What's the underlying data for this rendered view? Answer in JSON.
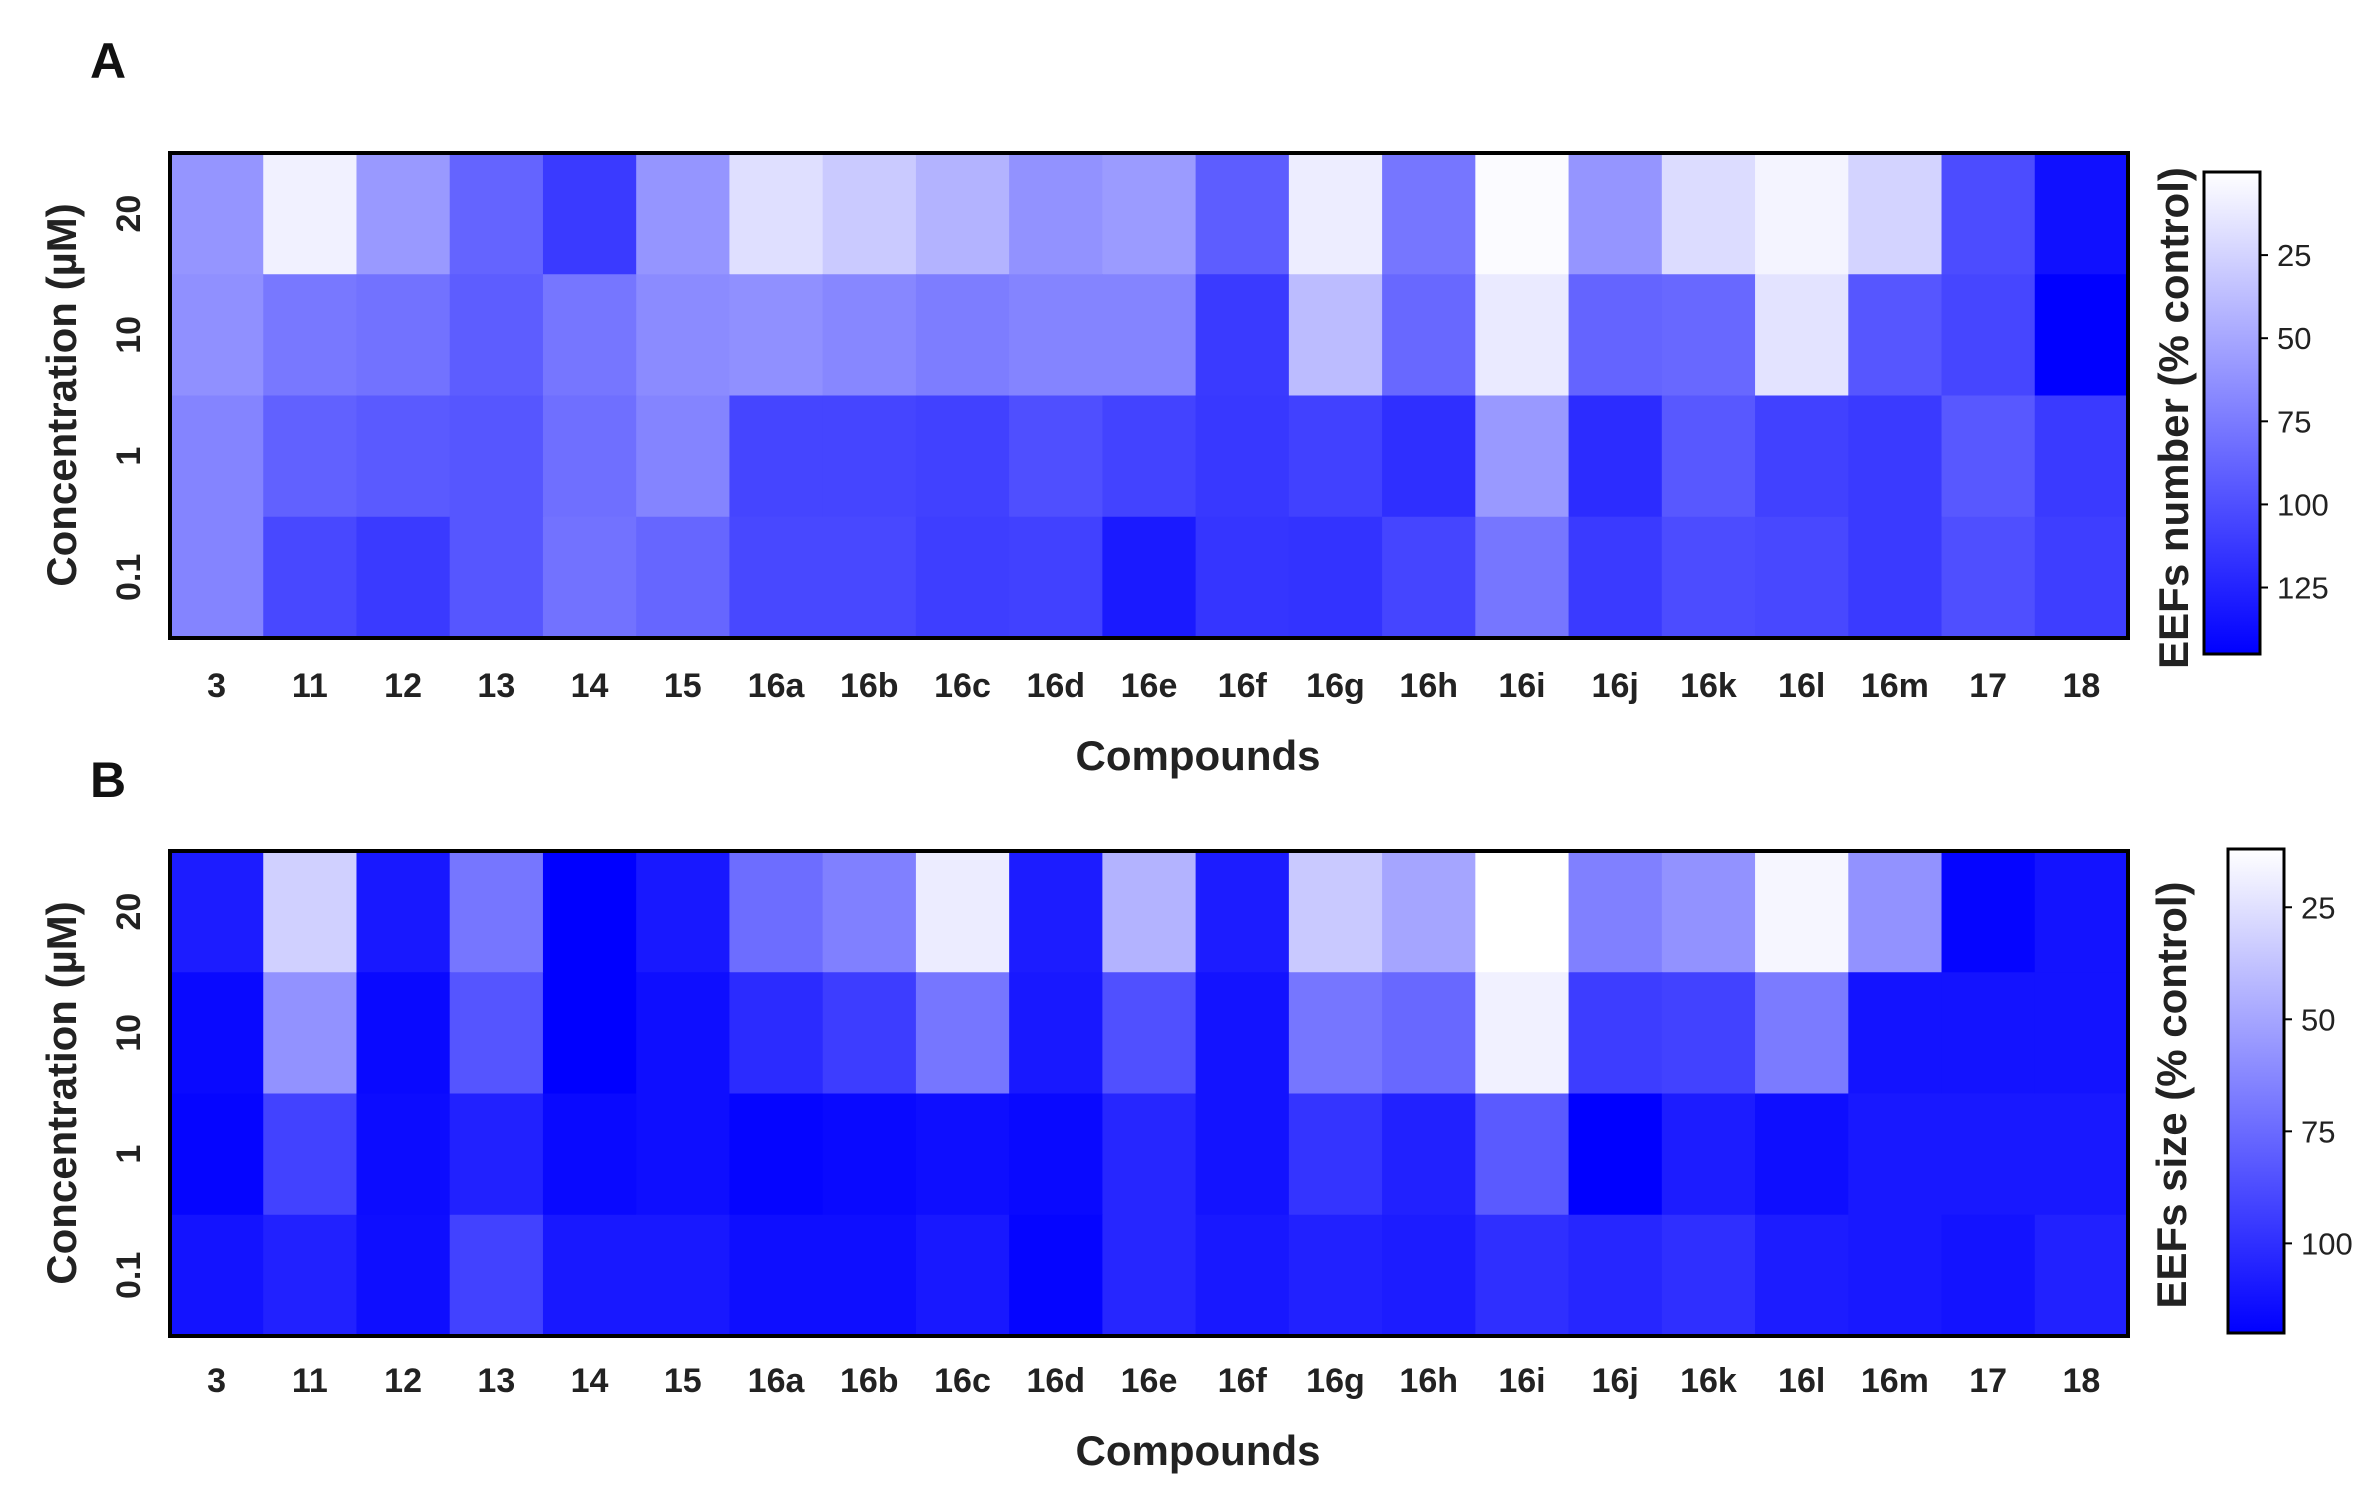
{
  "chart_data": [
    {
      "panel": "A",
      "type": "heatmap",
      "xlabel": "Compounds",
      "ylabel": "Concentration (µM)",
      "x": [
        "3",
        "11",
        "12",
        "13",
        "14",
        "15",
        "16a",
        "16b",
        "16c",
        "16d",
        "16e",
        "16f",
        "16g",
        "16h",
        "16i",
        "16j",
        "16k",
        "16l",
        "16m",
        "17",
        "18"
      ],
      "y": [
        "20",
        "10",
        "1",
        "0.1"
      ],
      "values": [
        [
          60,
          8,
          58,
          88,
          112,
          60,
          18,
          30,
          43,
          62,
          57,
          92,
          10,
          78,
          2,
          60,
          20,
          6,
          25,
          102,
          136
        ],
        [
          63,
          77,
          80,
          92,
          78,
          66,
          63,
          68,
          74,
          70,
          70,
          112,
          38,
          86,
          12,
          88,
          86,
          16,
          96,
          105,
          150
        ],
        [
          70,
          90,
          94,
          96,
          82,
          70,
          106,
          106,
          108,
          100,
          107,
          113,
          108,
          118,
          58,
          120,
          95,
          108,
          112,
          95,
          112
        ],
        [
          70,
          104,
          112,
          96,
          80,
          87,
          104,
          104,
          110,
          108,
          130,
          115,
          116,
          106,
          78,
          112,
          102,
          104,
          112,
          100,
          110
        ]
      ],
      "colorbar": {
        "label": "EEFs number (% control)",
        "ticks": [
          25,
          50,
          75,
          100,
          125
        ],
        "range": [
          0,
          145
        ],
        "reversed": true,
        "low_color": "#ffffff",
        "high_color": "#0000ff"
      }
    },
    {
      "panel": "B",
      "type": "heatmap",
      "xlabel": "Compounds",
      "ylabel": "Concentration (µM)",
      "x": [
        "3",
        "11",
        "12",
        "13",
        "14",
        "15",
        "16a",
        "16b",
        "16c",
        "16d",
        "16e",
        "16f",
        "16g",
        "16h",
        "16i",
        "16j",
        "16k",
        "16l",
        "16m",
        "17",
        "18"
      ],
      "y": [
        "20",
        "10",
        "1",
        "0.1"
      ],
      "values": [
        [
          108,
          32,
          110,
          70,
          120,
          110,
          74,
          66,
          20,
          108,
          44,
          108,
          35,
          50,
          12,
          66,
          58,
          16,
          58,
          118,
          112
        ],
        [
          116,
          58,
          116,
          84,
          120,
          114,
          102,
          94,
          70,
          110,
          86,
          112,
          70,
          76,
          18,
          94,
          92,
          68,
          112,
          112,
          112
        ],
        [
          118,
          92,
          115,
          106,
          116,
          114,
          118,
          116,
          114,
          116,
          104,
          112,
          98,
          106,
          82,
          120,
          108,
          114,
          110,
          110,
          110
        ],
        [
          112,
          106,
          114,
          92,
          110,
          110,
          114,
          114,
          110,
          118,
          104,
          110,
          106,
          108,
          100,
          104,
          100,
          108,
          110,
          112,
          106
        ]
      ],
      "colorbar": {
        "label": "EEFs size (% control)",
        "ticks": [
          25,
          50,
          75,
          100
        ],
        "range": [
          12,
          120
        ],
        "reversed": true,
        "low_color": "#ffffff",
        "high_color": "#0000ff"
      }
    }
  ]
}
